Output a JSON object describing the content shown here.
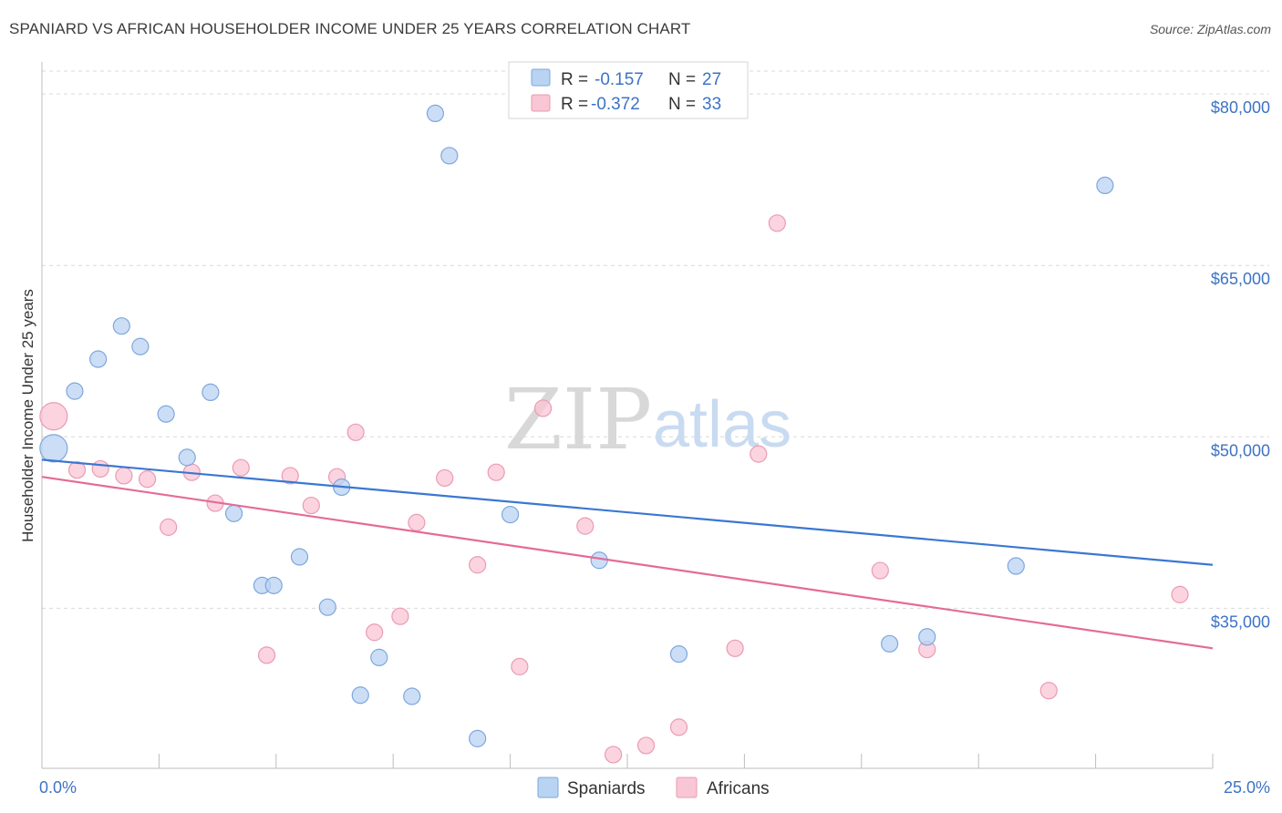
{
  "title": "SPANIARD VS AFRICAN HOUSEHOLDER INCOME UNDER 25 YEARS CORRELATION CHART",
  "source": "Source: ZipAtlas.com",
  "watermark": {
    "part1": "ZIP",
    "part2": "atlas"
  },
  "legend": {
    "rows": [
      {
        "r_label": "R = ",
        "r_value": "-0.157",
        "n_label": "N = ",
        "n_value": "27"
      },
      {
        "r_label": "R = ",
        "r_value": "-0.372",
        "n_label": "N = ",
        "n_value": "33"
      }
    ]
  },
  "bottom_legend": [
    "Spaniards",
    "Africans"
  ],
  "colors": {
    "spaniards_fill": "#b9d3f3",
    "spaniards_stroke": "#7ea7dc",
    "spaniards_line": "#3b77d2",
    "africans_fill": "#f9c6d5",
    "africans_stroke": "#eb9ab4",
    "africans_line": "#e46b97",
    "grid": "#d9d9d9",
    "axis_text": "#3d73c5"
  },
  "chart_data": {
    "type": "scatter",
    "title": "SPANIARD VS AFRICAN HOUSEHOLDER INCOME UNDER 25 YEARS CORRELATION CHART",
    "xlabel": "",
    "ylabel": "Householder Income Under 25 years",
    "xlim": [
      0,
      25
    ],
    "ylim": [
      21000,
      82000
    ],
    "x_tick_labels": [
      "0.0%",
      "25.0%"
    ],
    "y_ticks": [
      35000,
      50000,
      65000,
      80000
    ],
    "y_tick_labels": [
      "$35,000",
      "$50,000",
      "$65,000",
      "$80,000"
    ],
    "series": [
      {
        "name": "Spaniards",
        "r": -0.157,
        "n": 27,
        "trend": {
          "x": [
            0,
            25
          ],
          "y": [
            48000,
            38800
          ]
        },
        "points": [
          {
            "x": 0.25,
            "y": 49000,
            "big": true
          },
          {
            "x": 0.7,
            "y": 54000,
            "big": false
          },
          {
            "x": 1.2,
            "y": 56800
          },
          {
            "x": 1.7,
            "y": 59700
          },
          {
            "x": 2.1,
            "y": 57900
          },
          {
            "x": 2.65,
            "y": 52000
          },
          {
            "x": 3.1,
            "y": 48200
          },
          {
            "x": 3.6,
            "y": 53900
          },
          {
            "x": 4.1,
            "y": 43300
          },
          {
            "x": 4.7,
            "y": 37000
          },
          {
            "x": 4.95,
            "y": 37000
          },
          {
            "x": 5.5,
            "y": 39500
          },
          {
            "x": 6.1,
            "y": 35100
          },
          {
            "x": 6.4,
            "y": 45600
          },
          {
            "x": 6.8,
            "y": 27400
          },
          {
            "x": 7.2,
            "y": 30700
          },
          {
            "x": 7.9,
            "y": 27300
          },
          {
            "x": 8.4,
            "y": 78300
          },
          {
            "x": 8.7,
            "y": 74600
          },
          {
            "x": 9.3,
            "y": 23600
          },
          {
            "x": 10.0,
            "y": 43200
          },
          {
            "x": 11.9,
            "y": 39200
          },
          {
            "x": 13.6,
            "y": 31000
          },
          {
            "x": 18.1,
            "y": 31900
          },
          {
            "x": 18.9,
            "y": 32500
          },
          {
            "x": 20.8,
            "y": 38700
          },
          {
            "x": 22.7,
            "y": 72000
          }
        ]
      },
      {
        "name": "Africans",
        "r": -0.372,
        "n": 33,
        "trend": {
          "x": [
            0,
            25
          ],
          "y": [
            46500,
            31500
          ]
        },
        "points": [
          {
            "x": 0.25,
            "y": 51800,
            "big": true
          },
          {
            "x": 0.75,
            "y": 47100
          },
          {
            "x": 1.25,
            "y": 47200
          },
          {
            "x": 1.75,
            "y": 46600
          },
          {
            "x": 2.25,
            "y": 46300
          },
          {
            "x": 2.7,
            "y": 42100
          },
          {
            "x": 3.2,
            "y": 46900
          },
          {
            "x": 3.7,
            "y": 44200
          },
          {
            "x": 4.25,
            "y": 47300
          },
          {
            "x": 4.8,
            "y": 30900
          },
          {
            "x": 5.3,
            "y": 46600
          },
          {
            "x": 5.75,
            "y": 44000
          },
          {
            "x": 6.3,
            "y": 46500
          },
          {
            "x": 6.7,
            "y": 50400
          },
          {
            "x": 7.1,
            "y": 32900
          },
          {
            "x": 7.65,
            "y": 34300
          },
          {
            "x": 8.0,
            "y": 42500
          },
          {
            "x": 8.6,
            "y": 46400
          },
          {
            "x": 9.3,
            "y": 38800
          },
          {
            "x": 9.7,
            "y": 46900
          },
          {
            "x": 10.2,
            "y": 29900
          },
          {
            "x": 10.7,
            "y": 52500
          },
          {
            "x": 11.6,
            "y": 42200
          },
          {
            "x": 12.2,
            "y": 22200
          },
          {
            "x": 12.9,
            "y": 23000
          },
          {
            "x": 13.6,
            "y": 24600
          },
          {
            "x": 14.8,
            "y": 31500
          },
          {
            "x": 15.3,
            "y": 48500
          },
          {
            "x": 15.7,
            "y": 68700
          },
          {
            "x": 17.9,
            "y": 38300
          },
          {
            "x": 18.9,
            "y": 31400
          },
          {
            "x": 21.5,
            "y": 27800
          },
          {
            "x": 24.3,
            "y": 36200
          }
        ]
      }
    ]
  }
}
